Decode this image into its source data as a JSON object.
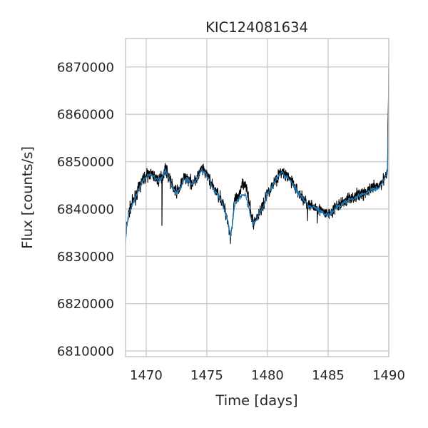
{
  "chart_data": {
    "type": "line",
    "title": "KIC124081634",
    "xlabel": "Time [days]",
    "ylabel": "Flux [counts/s]",
    "xlim": [
      1468.3,
      1490.0
    ],
    "ylim": [
      6808800,
      6876000
    ],
    "x_ticks": [
      1470,
      1475,
      1480,
      1485,
      1490
    ],
    "y_ticks": [
      6810000,
      6820000,
      6830000,
      6840000,
      6850000,
      6860000,
      6870000
    ],
    "grid": true,
    "colors": {
      "raw": "#000000",
      "model": "#1f77b4",
      "grid": "#cccccc",
      "spine": "#cccccc"
    },
    "series": [
      {
        "style": "raw-noisy",
        "x": [
          1468.3,
          1468.4,
          1468.6,
          1468.9,
          1469.2,
          1469.5,
          1469.8,
          1470.1,
          1470.4,
          1470.7,
          1471.0,
          1471.3,
          1471.6,
          1471.9,
          1472.2,
          1472.5,
          1472.8,
          1473.1,
          1473.4,
          1473.7,
          1474.0,
          1474.3,
          1474.6,
          1474.9,
          1475.2,
          1475.5,
          1475.8,
          1476.1,
          1476.4,
          1476.7,
          1476.95,
          1477.1,
          1477.3,
          1477.6,
          1477.9,
          1478.2,
          1478.5,
          1478.8,
          1479.1,
          1479.4,
          1479.7,
          1480.0,
          1480.3,
          1480.6,
          1480.9,
          1481.2,
          1481.5,
          1481.8,
          1482.1,
          1482.4,
          1482.7,
          1483.0,
          1483.3,
          1483.6,
          1483.9,
          1484.2,
          1484.5,
          1484.8,
          1485.1,
          1485.4,
          1485.7,
          1486.0,
          1486.3,
          1486.6,
          1486.9,
          1487.2,
          1487.5,
          1487.8,
          1488.1,
          1488.4,
          1488.7,
          1489.0,
          1489.3,
          1489.6,
          1489.9,
          1490.0
        ],
        "y": [
          6833000,
          6836500,
          6839500,
          6841500,
          6843000,
          6845000,
          6846500,
          6847200,
          6847500,
          6846800,
          6846000,
          6846800,
          6848500,
          6846500,
          6844500,
          6843500,
          6844500,
          6846500,
          6846500,
          6845500,
          6846000,
          6847000,
          6848500,
          6847500,
          6846500,
          6844500,
          6843500,
          6842500,
          6840500,
          6838000,
          6834000,
          6837000,
          6842000,
          6842000,
          6845500,
          6845500,
          6841000,
          6837000,
          6838000,
          6839500,
          6841000,
          6843500,
          6844500,
          6846000,
          6847000,
          6848000,
          6847000,
          6846500,
          6845500,
          6844000,
          6843000,
          6842000,
          6841000,
          6840500,
          6840500,
          6840000,
          6839500,
          6839000,
          6839000,
          6839500,
          6840500,
          6841000,
          6841500,
          6842000,
          6842500,
          6842500,
          6843000,
          6843200,
          6843500,
          6844000,
          6844500,
          6844500,
          6845000,
          6846500,
          6848000,
          6872000
        ]
      },
      {
        "style": "model-smooth",
        "x": [
          1468.3,
          1468.4,
          1468.6,
          1468.9,
          1469.2,
          1469.5,
          1469.8,
          1470.1,
          1470.4,
          1470.7,
          1471.0,
          1471.3,
          1471.6,
          1471.9,
          1472.2,
          1472.5,
          1472.8,
          1473.1,
          1473.4,
          1473.7,
          1474.0,
          1474.3,
          1474.6,
          1474.9,
          1475.2,
          1475.5,
          1475.8,
          1476.1,
          1476.4,
          1476.7,
          1476.95,
          1477.1,
          1477.3,
          1477.6,
          1477.9,
          1478.2,
          1478.5,
          1478.8,
          1479.1,
          1479.4,
          1479.7,
          1480.0,
          1480.3,
          1480.6,
          1480.9,
          1481.2,
          1481.5,
          1481.8,
          1482.1,
          1482.4,
          1482.7,
          1483.0,
          1483.3,
          1483.6,
          1483.9,
          1484.2,
          1484.5,
          1484.8,
          1485.1,
          1485.4,
          1485.7,
          1486.0,
          1486.3,
          1486.6,
          1486.9,
          1487.2,
          1487.5,
          1487.8,
          1488.1,
          1488.4,
          1488.7,
          1489.0,
          1489.3,
          1489.6,
          1489.9,
          1490.0
        ],
        "y": [
          6833000,
          6836300,
          6839300,
          6841300,
          6842800,
          6844800,
          6846300,
          6847000,
          6847300,
          6846600,
          6845800,
          6846600,
          6848300,
          6846300,
          6844300,
          6843300,
          6844300,
          6846300,
          6846300,
          6845300,
          6845800,
          6846800,
          6848300,
          6847300,
          6846300,
          6844300,
          6843300,
          6842300,
          6840300,
          6837800,
          6834300,
          6836800,
          6841000,
          6842000,
          6843000,
          6843000,
          6839500,
          6836800,
          6837800,
          6839300,
          6840800,
          6843300,
          6844300,
          6845800,
          6846800,
          6847800,
          6846800,
          6846300,
          6845300,
          6843800,
          6842800,
          6841800,
          6840800,
          6840300,
          6840300,
          6839800,
          6839300,
          6838800,
          6838800,
          6839300,
          6840300,
          6840800,
          6841300,
          6841800,
          6842300,
          6842300,
          6842800,
          6843000,
          6843300,
          6843800,
          6844300,
          6844300,
          6844800,
          6846300,
          6847800,
          6860000
        ]
      }
    ]
  }
}
